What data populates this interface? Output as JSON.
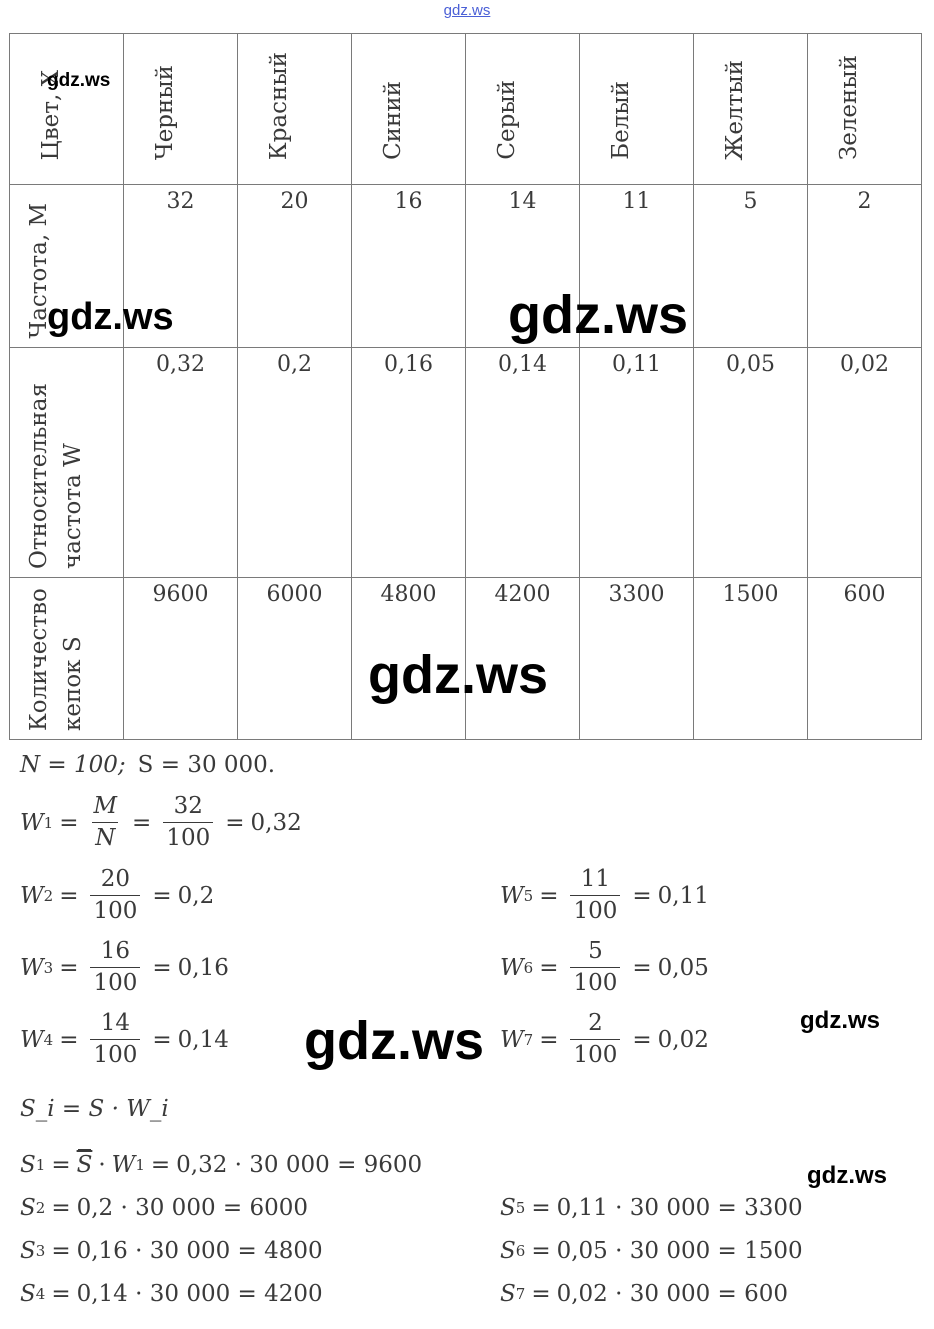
{
  "top_watermark": "gdz.ws",
  "table": {
    "header_label": "Цвет, X",
    "colors": [
      "Черный",
      "Красный",
      "Синий",
      "Серый",
      "Белый",
      "Желтый",
      "Зеленый"
    ],
    "rows": [
      {
        "label": "Частота, M",
        "values": [
          "32",
          "20",
          "16",
          "14",
          "11",
          "5",
          "2"
        ]
      },
      {
        "label": "Относительная частота W",
        "values": [
          "0,32",
          "0,2",
          "0,16",
          "0,14",
          "0,11",
          "0,05",
          "0,02"
        ]
      },
      {
        "label": "Количество кепок S",
        "values": [
          "9600",
          "6000",
          "4800",
          "4200",
          "3300",
          "1500",
          "600"
        ]
      }
    ]
  },
  "watermarks": [
    "gdz.ws",
    "gdz.ws",
    "gdz.ws",
    "gdz.ws",
    "gdz.ws",
    "gdz.ws",
    "gdz.ws",
    "gdz.ws"
  ],
  "formulas": {
    "given_N": "N = 100;",
    "given_S": "S = 30 000.",
    "w1": {
      "lhs": "W",
      "sub": "1",
      "num1": "M",
      "den1": "N",
      "num2": "32",
      "den2": "100",
      "result": "0,32"
    },
    "w_left": [
      {
        "sub": "2",
        "num": "20",
        "den": "100",
        "result": "0,2"
      },
      {
        "sub": "3",
        "num": "16",
        "den": "100",
        "result": "0,16"
      },
      {
        "sub": "4",
        "num": "14",
        "den": "100",
        "result": "0,14"
      }
    ],
    "w_right": [
      {
        "sub": "5",
        "num": "11",
        "den": "100",
        "result": "0,11"
      },
      {
        "sub": "6",
        "num": "5",
        "den": "100",
        "result": "0,05"
      },
      {
        "sub": "7",
        "num": "2",
        "den": "100",
        "result": "0,02"
      }
    ],
    "s_general": "S_i = S · W_i",
    "s1": "0,32 · 30 000 = 9600",
    "s_left": [
      {
        "sub": "2",
        "expr": "0,2 · 30 000 = 6000"
      },
      {
        "sub": "3",
        "expr": "0,16 · 30 000 = 4800"
      },
      {
        "sub": "4",
        "expr": "0,14 · 30 000 = 4200"
      }
    ],
    "s_right": [
      {
        "sub": "5",
        "expr": "0,11 · 30 000 = 3300"
      },
      {
        "sub": "6",
        "expr": "0,05 · 30 000 = 1500"
      },
      {
        "sub": "7",
        "expr": "0,02 · 30 000 = 600"
      }
    ]
  }
}
